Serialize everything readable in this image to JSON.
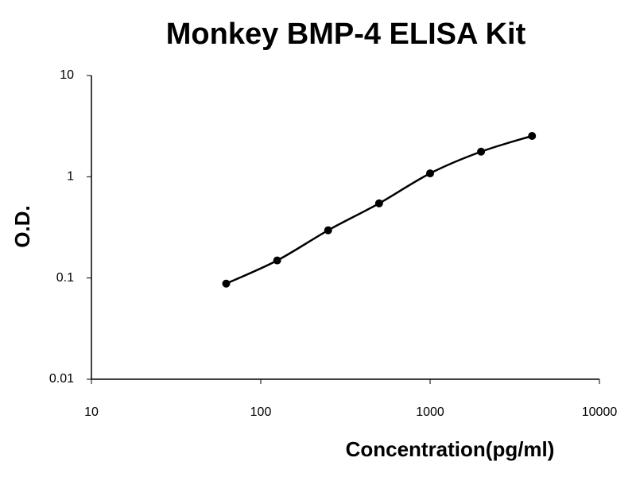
{
  "chart_data": {
    "type": "scatter",
    "title": "Monkey BMP-4 ELISA Kit",
    "x_label": "Concentration(pg/ml)",
    "y_label": "O.D.",
    "x": [
      62.5,
      125,
      250,
      500,
      1000,
      2000,
      4000
    ],
    "values": [
      0.088,
      0.149,
      0.296,
      0.546,
      1.08,
      1.77,
      2.53
    ],
    "color": "#000000",
    "x_log": true,
    "y_log": true,
    "fit_curve": true,
    "xlim": [
      10,
      10000
    ],
    "xticks": [
      10,
      100,
      1000,
      10000
    ],
    "ylim": [
      0.01,
      10
    ],
    "yticks": [
      0.01,
      0.1,
      1,
      10
    ]
  }
}
